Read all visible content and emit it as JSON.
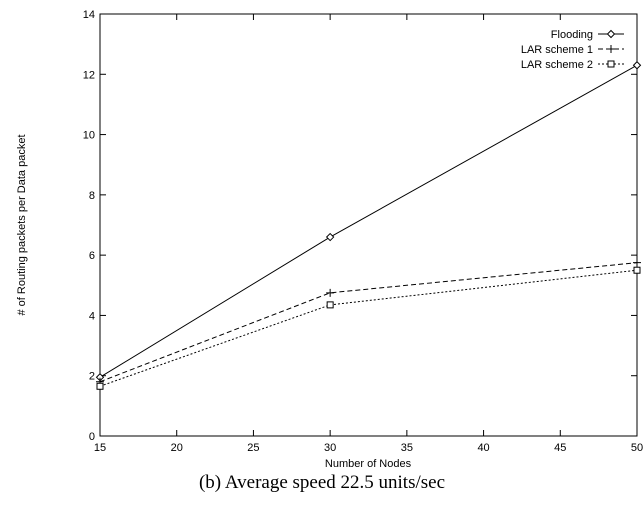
{
  "caption": "(b) Average speed 22.5 units/sec",
  "chart_data": {
    "type": "line",
    "xlabel": "Number of Nodes",
    "ylabel": "# of Routing packets per Data packet",
    "xlim": [
      15,
      50
    ],
    "ylim": [
      0,
      14
    ],
    "xticks": [
      15,
      20,
      25,
      30,
      35,
      40,
      45,
      50
    ],
    "yticks": [
      0,
      2,
      4,
      6,
      8,
      10,
      12,
      14
    ],
    "grid": false,
    "legend_position": "top-right",
    "x": [
      15,
      30,
      50
    ],
    "series": [
      {
        "name": "Flooding",
        "values": [
          1.95,
          6.6,
          12.3
        ],
        "marker": "diamond",
        "dash": "solid",
        "color": "#000000"
      },
      {
        "name": "LAR scheme 1",
        "values": [
          1.8,
          4.75,
          5.75
        ],
        "marker": "plus",
        "dash": "dashed",
        "color": "#000000"
      },
      {
        "name": "LAR scheme 2",
        "values": [
          1.65,
          4.35,
          5.5
        ],
        "marker": "square",
        "dash": "dotted",
        "color": "#000000"
      }
    ]
  }
}
